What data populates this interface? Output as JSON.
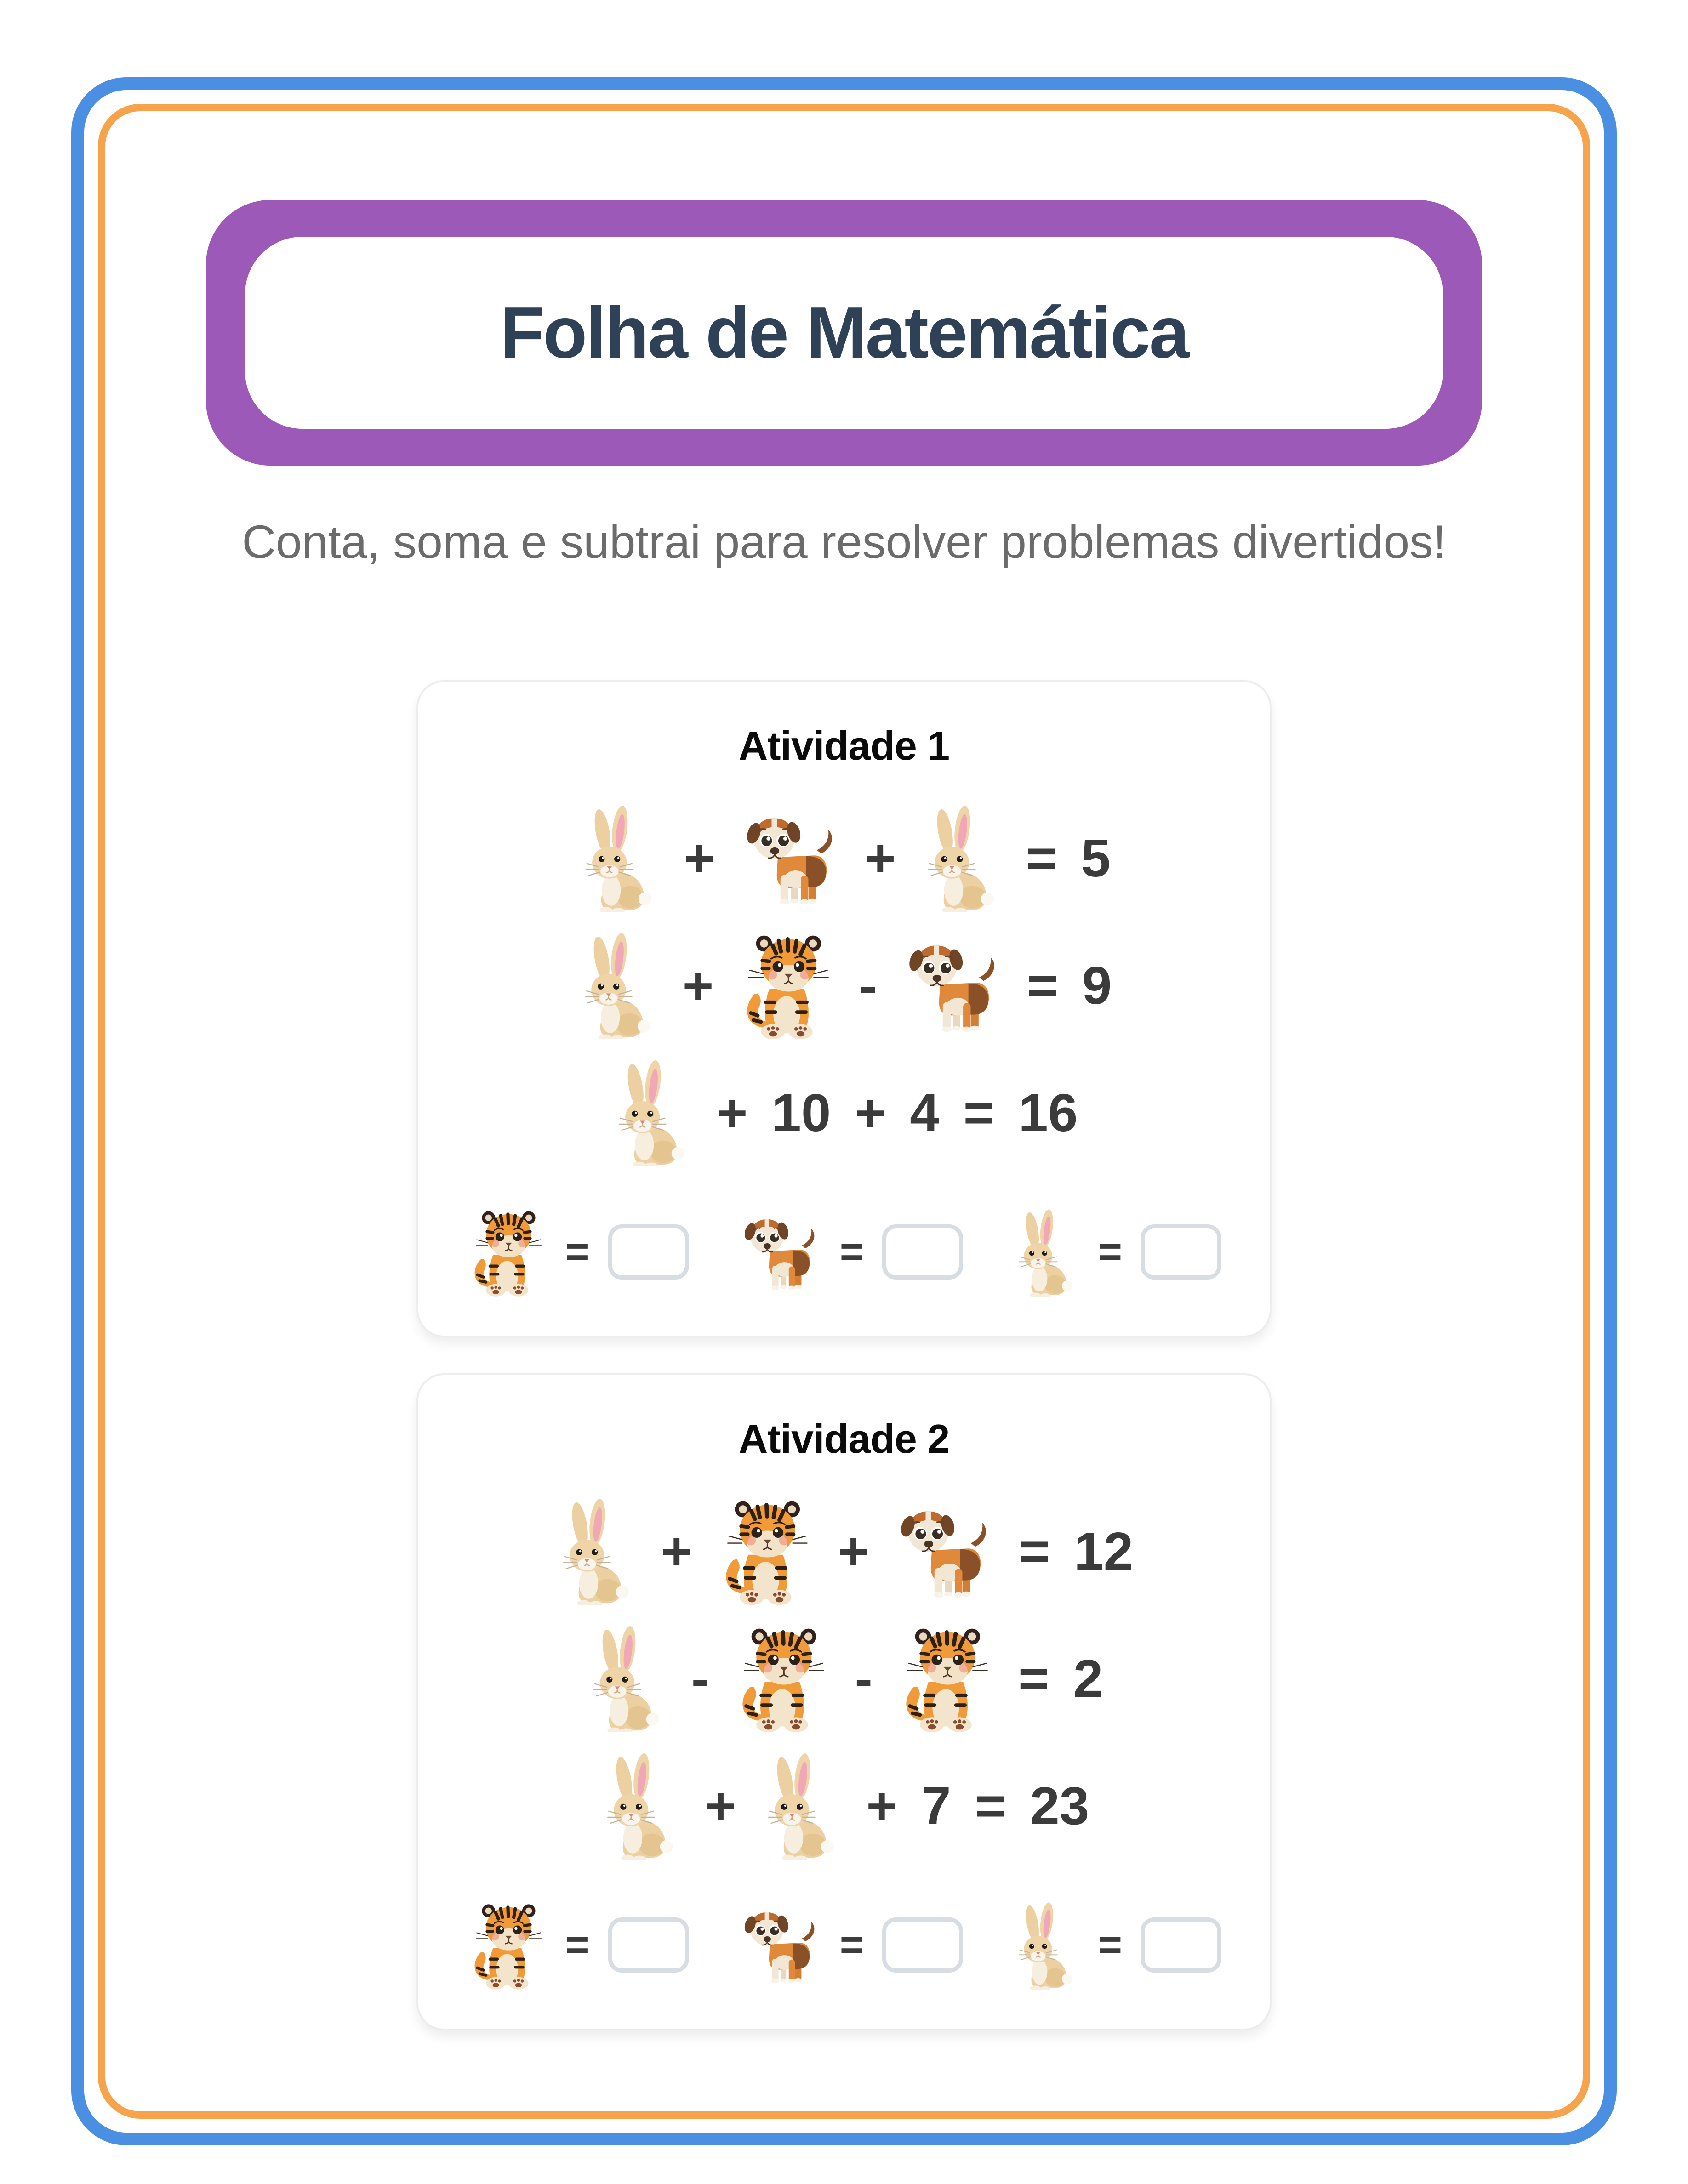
{
  "header": {
    "title": "Folha de Matemática",
    "subtitle": "Conta, soma e subtrai para resolver problemas divertidos!"
  },
  "equals": "=",
  "animals": [
    "rabbit",
    "dog",
    "tiger"
  ],
  "animal_icons": [
    "rabbit-icon",
    "dog-icon",
    "tiger-icon"
  ],
  "activities": [
    {
      "title": "Atividade 1",
      "equations": [
        [
          "rabbit",
          "+",
          "dog",
          "+",
          "rabbit",
          "=",
          "5"
        ],
        [
          "rabbit",
          "+",
          "tiger",
          "-",
          "dog",
          "=",
          "9"
        ],
        [
          "rabbit",
          "+",
          "10",
          "+",
          "4",
          "=",
          "16"
        ]
      ],
      "answers": [
        "tiger",
        "dog",
        "rabbit"
      ]
    },
    {
      "title": "Atividade 2",
      "equations": [
        [
          "rabbit",
          "+",
          "tiger",
          "+",
          "dog",
          "=",
          "12"
        ],
        [
          "rabbit",
          "-",
          "tiger",
          "-",
          "tiger",
          "=",
          "2"
        ],
        [
          "rabbit",
          "+",
          "rabbit",
          "+",
          "7",
          "=",
          "23"
        ]
      ],
      "answers": [
        "tiger",
        "dog",
        "rabbit"
      ]
    }
  ],
  "colors": {
    "frame_blue": "#4a8fe2",
    "frame_orange": "#f7a34c",
    "header_purple": "#9c59b7",
    "title_navy": "#2e4156",
    "subtitle_gray": "#6b6b6b",
    "equation_gray": "#3b3b3b",
    "box_border": "#d7dde2",
    "card_border": "#ededed"
  }
}
